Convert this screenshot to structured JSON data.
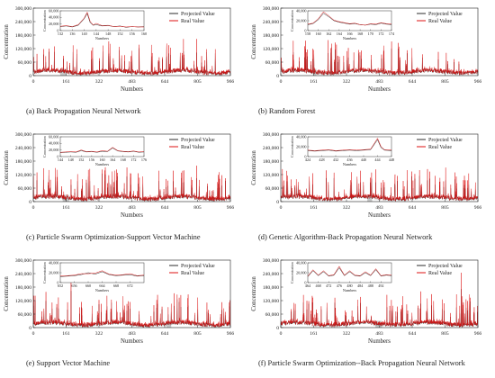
{
  "colors": {
    "projected": "#2b2b2b",
    "real": "#dd1111",
    "highlight": "#9a9a9a"
  },
  "chart_data": [
    {
      "type": "line",
      "caption": "(a) Back Propagation Neural Network",
      "xlabel": "Numbers",
      "ylabel": "Concentration",
      "xlim": [
        0,
        966
      ],
      "ylim": [
        0,
        300000
      ],
      "xticks": [
        "0",
        "161",
        "322",
        "483",
        "644",
        "805",
        "966"
      ],
      "yticks": [
        "0",
        "60,000",
        "120,000",
        "180,000",
        "240,000",
        "300,000"
      ],
      "legend": [
        "Projected Value",
        "Real Value"
      ],
      "legend_position": "top-right",
      "highlight_range": [
        132,
        160
      ],
      "series": [
        {
          "name": "Projected Value",
          "values": [
            9800,
            14000,
            20000,
            26000,
            18000,
            12000,
            10000,
            16000,
            24000,
            32000,
            15000,
            12000,
            11000,
            9000,
            14000,
            10000,
            8000,
            12000,
            13000,
            9000,
            10000,
            9500
          ]
        },
        {
          "name": "Real Value",
          "values": [
            11000,
            17000,
            22000,
            28000,
            21000,
            13000,
            11000,
            19000,
            26000,
            45000,
            18000,
            13000,
            12000,
            10000,
            17000,
            11000,
            9000,
            14000,
            12000,
            8000,
            9000,
            9000
          ]
        }
      ],
      "inset": {
        "xticks": [
          "132",
          "136",
          "140",
          "144",
          "148",
          "152",
          "156",
          "160"
        ],
        "yticks": [
          "0",
          "20,000",
          "40,000",
          "60,000"
        ],
        "xlabel": "Numbers",
        "ylabel": "Concentration",
        "x": [
          132,
          134,
          136,
          138,
          140,
          141,
          142,
          143,
          144,
          146,
          148,
          150,
          152,
          154,
          156,
          158,
          160
        ],
        "projected": [
          12000,
          14000,
          11000,
          16000,
          36000,
          52000,
          24000,
          16000,
          18000,
          14000,
          15000,
          12000,
          14000,
          10000,
          12000,
          11000,
          12000
        ],
        "real": [
          13000,
          15000,
          12000,
          18000,
          38000,
          56000,
          28000,
          17000,
          22000,
          15000,
          16000,
          12000,
          13000,
          11000,
          12000,
          11000,
          11000
        ]
      }
    },
    {
      "type": "line",
      "caption": "(b) Random Forest",
      "xlabel": "Numbers",
      "ylabel": "Concentration",
      "xlim": [
        0,
        966
      ],
      "ylim": [
        0,
        300000
      ],
      "xticks": [
        "0",
        "161",
        "322",
        "483",
        "644",
        "805",
        "966"
      ],
      "yticks": [
        "0",
        "60,000",
        "120,000",
        "180,000",
        "240,000",
        "300,000"
      ],
      "legend": [
        "Projected Value",
        "Real Value"
      ],
      "legend_position": "top-right",
      "highlight_range": [
        158,
        174
      ],
      "series": [
        {
          "name": "Projected Value",
          "values": [
            9000,
            14000,
            19000,
            24000,
            17000,
            12000,
            10000,
            15000,
            22000,
            29000,
            15000,
            11000
          ]
        },
        {
          "name": "Real Value",
          "values": [
            11000,
            17000,
            22000,
            28000,
            21000,
            13000,
            11000,
            19000,
            26000,
            45000,
            18000,
            13000
          ]
        }
      ],
      "inset": {
        "xticks": [
          "158",
          "160",
          "162",
          "164",
          "166",
          "168",
          "170",
          "172",
          "174"
        ],
        "yticks": [
          "0",
          "20,000",
          "40,000"
        ],
        "xlabel": "Numbers",
        "ylabel": "Concentration",
        "x": [
          158,
          159,
          160,
          161,
          162,
          163,
          164,
          165,
          166,
          167,
          168,
          169,
          170,
          171,
          172,
          173,
          174
        ],
        "projected": [
          12000,
          14000,
          22000,
          35000,
          28000,
          20000,
          17000,
          15000,
          13000,
          14000,
          12000,
          11000,
          13000,
          12000,
          15000,
          13000,
          12000
        ],
        "real": [
          13000,
          15000,
          24000,
          38000,
          30000,
          21000,
          18000,
          16000,
          14000,
          15000,
          12000,
          11000,
          14000,
          13000,
          16000,
          14000,
          13000
        ]
      }
    },
    {
      "type": "line",
      "caption": "(c) Particle Swarm Optimization-Support Vector Machine",
      "xlabel": "Numbers",
      "ylabel": "Concentration",
      "xlim": [
        0,
        966
      ],
      "ylim": [
        0,
        300000
      ],
      "xticks": [
        "0",
        "161",
        "322",
        "483",
        "644",
        "805",
        "966"
      ],
      "yticks": [
        "0",
        "60,000",
        "120,000",
        "180,000",
        "240,000",
        "300,000"
      ],
      "legend": [
        "Projected Value",
        "Real Value"
      ],
      "legend_position": "top-right",
      "highlight_range": [
        144,
        176
      ],
      "series": [
        {
          "name": "Projected Value",
          "values": [
            9000,
            13000,
            18000,
            24000,
            16000,
            11000,
            10000,
            15000,
            21000,
            28000,
            14000,
            11000
          ]
        },
        {
          "name": "Real Value",
          "values": [
            11000,
            17000,
            22000,
            28000,
            21000,
            13000,
            11000,
            19000,
            26000,
            45000,
            18000,
            13000
          ]
        }
      ],
      "inset": {
        "xticks": [
          "144",
          "148",
          "152",
          "156",
          "160",
          "164",
          "168",
          "172",
          "176"
        ],
        "yticks": [
          "0",
          "20,000",
          "40,000",
          "60,000"
        ],
        "xlabel": "Numbers",
        "ylabel": "Concentration",
        "x": [
          144,
          146,
          148,
          150,
          152,
          154,
          156,
          158,
          160,
          162,
          164,
          166,
          168,
          170,
          172,
          174,
          176
        ],
        "projected": [
          12000,
          13000,
          14000,
          13000,
          18000,
          14000,
          15000,
          13000,
          16000,
          15000,
          26000,
          17000,
          15000,
          14000,
          16000,
          13000,
          14000
        ],
        "real": [
          13000,
          14000,
          15000,
          14000,
          20000,
          15000,
          16000,
          14000,
          18000,
          16000,
          28000,
          18000,
          16000,
          15000,
          17000,
          14000,
          15000
        ]
      }
    },
    {
      "type": "line",
      "caption": "(d) Genetic Algorithm-Back Propagation Neural Network",
      "xlabel": "Numbers",
      "ylabel": "Concentration",
      "xlim": [
        0,
        966
      ],
      "ylim": [
        0,
        300000
      ],
      "xticks": [
        "0",
        "161",
        "322",
        "483",
        "644",
        "805",
        "966"
      ],
      "yticks": [
        "0",
        "60,000",
        "120,000",
        "180,000",
        "240,000",
        "300,000"
      ],
      "legend": [
        "Projected Value",
        "Real Value"
      ],
      "legend_position": "top-right",
      "highlight_range": [
        424,
        448
      ],
      "series": [
        {
          "name": "Projected Value",
          "values": [
            9000,
            13000,
            19000,
            24000,
            17000,
            12000,
            10000,
            15000,
            22000,
            30000,
            15000,
            11000
          ]
        },
        {
          "name": "Real Value",
          "values": [
            11000,
            17000,
            22000,
            28000,
            21000,
            13000,
            11000,
            19000,
            26000,
            45000,
            18000,
            13000
          ]
        }
      ],
      "inset": {
        "xticks": [
          "424",
          "428",
          "432",
          "436",
          "440",
          "444",
          "448"
        ],
        "yticks": [
          "0",
          "20,000",
          "40,000"
        ],
        "xlabel": "Numbers",
        "ylabel": "Concentration",
        "x": [
          424,
          426,
          428,
          430,
          432,
          434,
          436,
          438,
          440,
          442,
          444,
          445,
          446,
          448
        ],
        "projected": [
          12000,
          11000,
          12000,
          13000,
          11000,
          12000,
          13000,
          12000,
          13000,
          14000,
          34000,
          18000,
          13000,
          12000
        ],
        "real": [
          13000,
          12000,
          13000,
          14000,
          12000,
          13000,
          14000,
          13000,
          14000,
          15000,
          37000,
          20000,
          14000,
          13000
        ]
      }
    },
    {
      "type": "line",
      "caption": "(e) Support Vector Machine",
      "xlabel": "Numbers",
      "ylabel": "Concentration",
      "xlim": [
        0,
        966
      ],
      "ylim": [
        0,
        300000
      ],
      "xticks": [
        "0",
        "161",
        "322",
        "483",
        "644",
        "805",
        "966"
      ],
      "yticks": [
        "0",
        "60,000",
        "120,000",
        "180,000",
        "240,000",
        "300,000"
      ],
      "legend": [
        "Projected Value",
        "Real Value"
      ],
      "legend_position": "top-right",
      "highlight_range": [
        652,
        676
      ],
      "series": [
        {
          "name": "Projected Value",
          "values": [
            9000,
            13000,
            18000,
            23000,
            16000,
            11000,
            10000,
            14000,
            21000,
            27000,
            14000,
            11000
          ]
        },
        {
          "name": "Real Value",
          "values": [
            11000,
            17000,
            22000,
            28000,
            21000,
            13000,
            11000,
            19000,
            26000,
            45000,
            18000,
            13000
          ]
        }
      ],
      "inset": {
        "xticks": [
          "652",
          "656",
          "660",
          "664",
          "668",
          "672"
        ],
        "yticks": [
          "0",
          "20,000",
          "40,000"
        ],
        "xlabel": "Numbers",
        "ylabel": "Concentration",
        "x": [
          652,
          654,
          656,
          658,
          660,
          662,
          664,
          666,
          668,
          670,
          672,
          674,
          676
        ],
        "projected": [
          12000,
          13000,
          14000,
          16000,
          20000,
          17000,
          22000,
          16000,
          14000,
          15000,
          16000,
          13000,
          14000
        ],
        "real": [
          13000,
          14000,
          15000,
          18000,
          18000,
          19000,
          24000,
          17000,
          15000,
          16000,
          18000,
          14000,
          15000
        ]
      }
    },
    {
      "type": "line",
      "caption": "(f) Particle Swarm Optimization--Back Propagation Neural Network",
      "xlabel": "Numbers",
      "ylabel": "Concentration",
      "xlim": [
        0,
        966
      ],
      "ylim": [
        0,
        300000
      ],
      "xticks": [
        "0",
        "161",
        "322",
        "483",
        "644",
        "805",
        "966"
      ],
      "yticks": [
        "0",
        "60,000",
        "120,000",
        "180,000",
        "240,000",
        "300,000"
      ],
      "legend": [
        "Projected Value",
        "Real Value"
      ],
      "legend_position": "top-right",
      "highlight_range": [
        464,
        496
      ],
      "series": [
        {
          "name": "Projected Value",
          "values": [
            9000,
            13000,
            19000,
            24000,
            17000,
            12000,
            10000,
            15000,
            22000,
            29000,
            15000,
            11000
          ]
        },
        {
          "name": "Real Value",
          "values": [
            11000,
            17000,
            22000,
            28000,
            21000,
            13000,
            11000,
            19000,
            26000,
            45000,
            18000,
            13000
          ]
        }
      ],
      "inset": {
        "xticks": [
          "464",
          "468",
          "472",
          "476",
          "480",
          "484",
          "488",
          "492"
        ],
        "yticks": [
          "0",
          "20,000",
          "40,000"
        ],
        "xlabel": "Numbers",
        "ylabel": "Concentration",
        "x": [
          464,
          466,
          468,
          470,
          472,
          474,
          476,
          478,
          480,
          482,
          484,
          486,
          488,
          490,
          492,
          494,
          496
        ],
        "projected": [
          12000,
          24000,
          14000,
          22000,
          13000,
          15000,
          30000,
          14000,
          22000,
          14000,
          13000,
          20000,
          14000,
          26000,
          13000,
          15000,
          14000
        ],
        "real": [
          13000,
          26000,
          15000,
          24000,
          14000,
          16000,
          33000,
          15000,
          24000,
          15000,
          14000,
          22000,
          15000,
          28000,
          14000,
          16000,
          15000
        ]
      }
    }
  ]
}
